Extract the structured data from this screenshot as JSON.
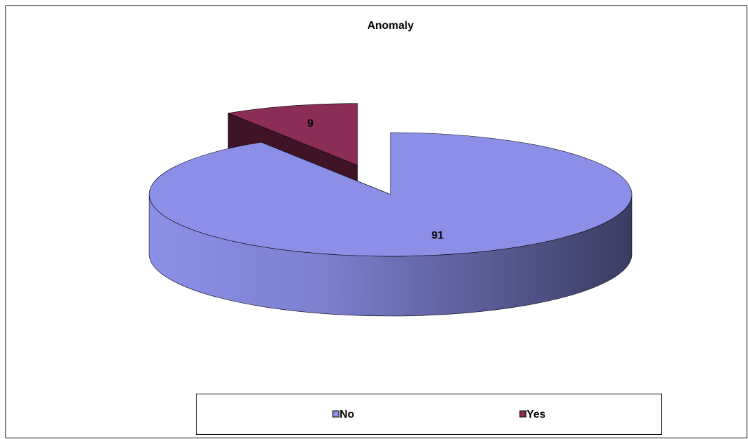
{
  "chart_data": {
    "type": "pie",
    "title": "Anomaly",
    "categories": [
      "No",
      "Yes"
    ],
    "values": [
      91,
      9
    ],
    "colors": [
      "#8b8fe8",
      "#8b2d57"
    ],
    "legend": "bottom"
  }
}
